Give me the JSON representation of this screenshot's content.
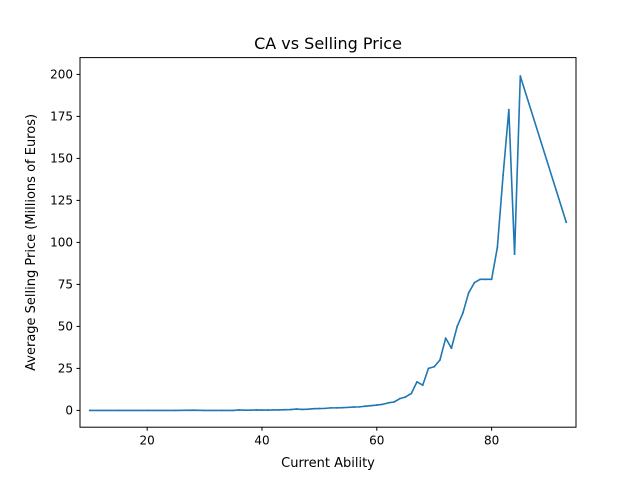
{
  "chart_data": {
    "type": "line",
    "title": "CA vs Selling Price",
    "xlabel": "Current Ability",
    "ylabel": "Average Selling Price (Millions of Euros)",
    "xlim": [
      8.3,
      94.7
    ],
    "ylim": [
      -10,
      210
    ],
    "xticks": [
      20,
      40,
      60,
      80
    ],
    "yticks": [
      0,
      25,
      50,
      75,
      100,
      125,
      150,
      175,
      200
    ],
    "grid": false,
    "legend": "none",
    "series": [
      {
        "color": "#1f77b4",
        "x": [
          10,
          15,
          20,
          25,
          28,
          30,
          33,
          35,
          36,
          37,
          38,
          39,
          40,
          41,
          42,
          43,
          44,
          45,
          46,
          47,
          48,
          49,
          50,
          51,
          52,
          53,
          54,
          55,
          56,
          57,
          58,
          59,
          60,
          61,
          62,
          63,
          64,
          65,
          66,
          67,
          68,
          69,
          70,
          71,
          72,
          73,
          74,
          75,
          76,
          77,
          78,
          79,
          80,
          81,
          82,
          83,
          84,
          85,
          93
        ],
        "y": [
          0,
          0,
          0,
          0,
          0.1,
          0,
          0,
          0,
          0.3,
          0.1,
          0.1,
          0.3,
          0.2,
          0.2,
          0.3,
          0.3,
          0.4,
          0.5,
          0.8,
          0.6,
          0.7,
          1.0,
          1.1,
          1.2,
          1.5,
          1.5,
          1.6,
          1.8,
          2.0,
          2.1,
          2.5,
          2.8,
          3.2,
          3.6,
          4.5,
          5.0,
          7.0,
          8.0,
          10.0,
          17.0,
          15.0,
          25.0,
          26.0,
          30.0,
          43.0,
          37.0,
          50.0,
          58.0,
          70.0,
          76.0,
          78.0,
          78.0,
          78.0,
          97.0,
          140.0,
          179.0,
          93.0,
          199.0,
          112.0
        ]
      }
    ]
  }
}
